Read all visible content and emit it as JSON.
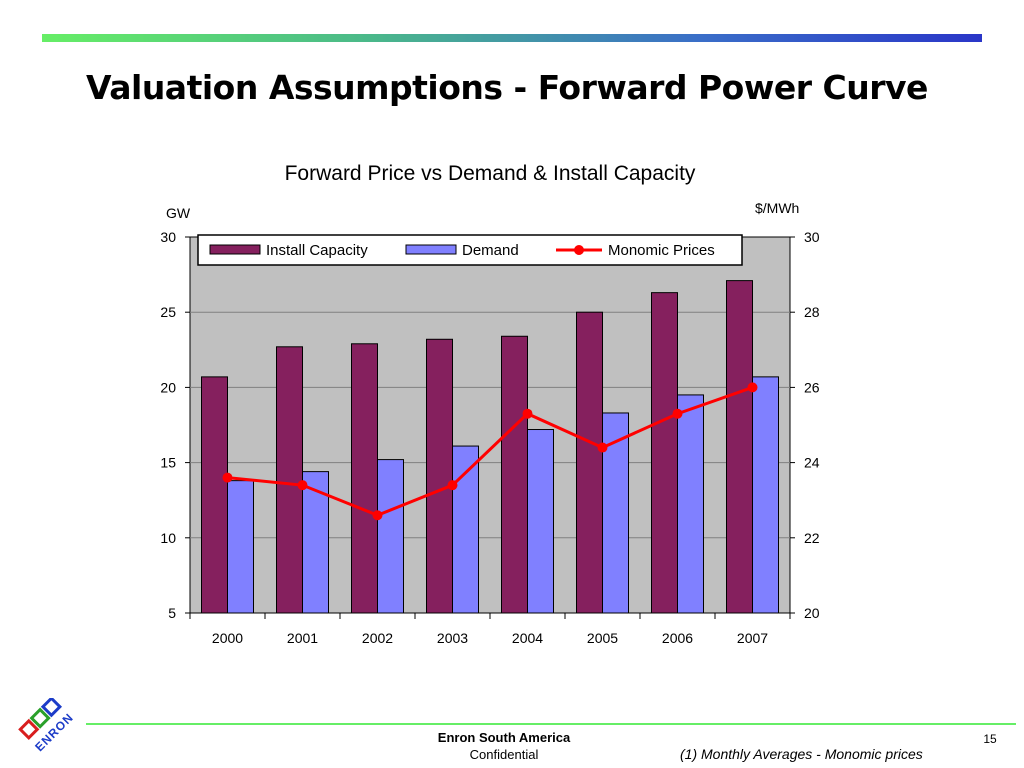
{
  "slide": {
    "title": "Valuation Assumptions - Forward Power Curve",
    "page_number": "15",
    "footer_company": "Enron South America",
    "footer_confidential": "Confidential",
    "footnote": "(1) Monthly Averages - Monomic prices",
    "logo_text": "ENRON"
  },
  "colors": {
    "install_capacity": "#85205e",
    "demand": "#8080ff",
    "monomic_prices": "#ff0000",
    "plot_background": "#c0c0c0",
    "top_bar_start": "#66ee66",
    "top_bar_end": "#2a36c8"
  },
  "chart_data": {
    "type": "bar",
    "title": "Forward Price vs Demand & Install Capacity",
    "categories": [
      "2000",
      "2001",
      "2002",
      "2003",
      "2004",
      "2005",
      "2006",
      "2007"
    ],
    "y_left_label": "GW",
    "y_right_label": "$/MWh",
    "ylim_left": [
      5,
      30
    ],
    "ylim_right": [
      20,
      30
    ],
    "y_left_ticks": [
      "5",
      "10",
      "15",
      "20",
      "25",
      "30"
    ],
    "y_right_ticks": [
      "20",
      "22",
      "24",
      "26",
      "28",
      "30"
    ],
    "grid": true,
    "legend_position": "top",
    "series": [
      {
        "name": "Install Capacity",
        "type": "bar",
        "axis": "left",
        "values": [
          20.7,
          22.7,
          22.9,
          23.2,
          23.4,
          25.0,
          26.3,
          27.1
        ]
      },
      {
        "name": "Demand",
        "type": "bar",
        "axis": "left",
        "values": [
          13.8,
          14.4,
          15.2,
          16.1,
          17.2,
          18.3,
          19.5,
          20.7
        ]
      },
      {
        "name": "Monomic Prices",
        "type": "line",
        "axis": "right",
        "values": [
          23.6,
          23.4,
          22.6,
          23.4,
          25.3,
          24.4,
          25.3,
          26.0
        ]
      }
    ]
  }
}
